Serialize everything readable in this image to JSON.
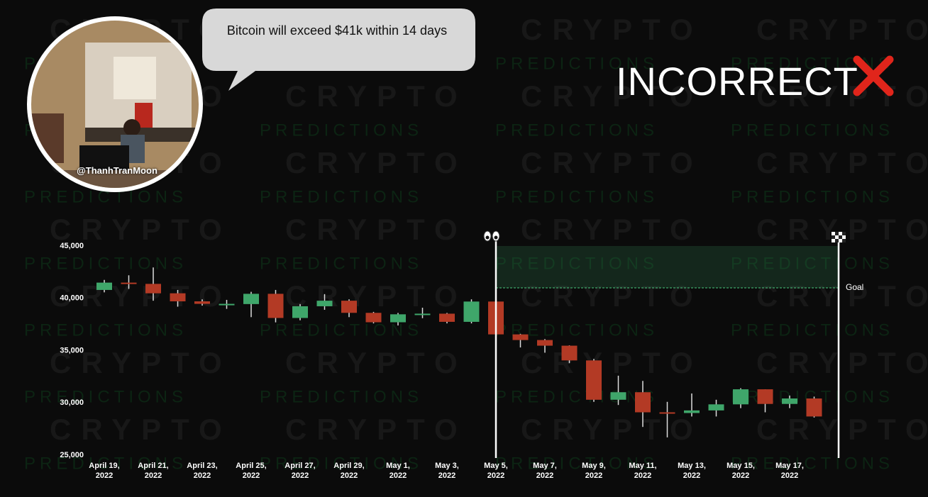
{
  "header": {
    "quote": "Bitcoin will exceed $41k within 14 days",
    "handle": "@ThanhTranMoon",
    "verdict": "INCORRECT"
  },
  "watermark": {
    "word": "CRYPTO",
    "subword": "PREDICTIONS"
  },
  "chart_data": {
    "type": "candlestick",
    "categories": [
      "April 19, 2022",
      null,
      "April 21, 2022",
      null,
      "April 23, 2022",
      null,
      "April 25, 2022",
      null,
      "April 27, 2022",
      null,
      "April 29, 2022",
      null,
      "May 1, 2022",
      null,
      "May 3, 2022",
      null,
      "May 5, 2022",
      null,
      "May 7, 2022",
      null,
      "May 9, 2022",
      null,
      "May 11, 2022",
      null,
      "May 13, 2022",
      null,
      "May 15, 2022",
      null,
      "May 17, 2022",
      null
    ],
    "open": [
      40800,
      41500,
      41380,
      40480,
      39710,
      39440,
      39450,
      40430,
      38120,
      39240,
      39770,
      38610,
      37710,
      38470,
      38530,
      37750,
      39690,
      36550,
      36010,
      35470,
      34060,
      30300,
      31020,
      29100,
      29030,
      29280,
      29860,
      31300,
      29900,
      30420
    ],
    "high": [
      41760,
      42200,
      42950,
      40800,
      39900,
      39850,
      40620,
      40800,
      39450,
      40400,
      39900,
      38700,
      38600,
      39100,
      38600,
      39900,
      39800,
      36600,
      36100,
      35500,
      34200,
      32600,
      32100,
      30100,
      30900,
      30300,
      31400,
      31300,
      30700,
      30600
    ],
    "low": [
      40570,
      40900,
      39770,
      39200,
      39300,
      38990,
      38200,
      37700,
      37900,
      38900,
      38200,
      37600,
      37400,
      38100,
      37600,
      37600,
      35600,
      35300,
      34800,
      33800,
      30100,
      29800,
      27700,
      26700,
      28700,
      28700,
      29500,
      29100,
      29500,
      28600
    ],
    "close": [
      41500,
      41380,
      40480,
      39710,
      39470,
      39470,
      40430,
      38120,
      39240,
      39770,
      38610,
      37710,
      38470,
      38530,
      37750,
      39690,
      36550,
      36010,
      35470,
      34060,
      30300,
      31020,
      29100,
      29030,
      29280,
      29860,
      31300,
      29900,
      30420,
      28700
    ],
    "up_color": "#3fa66a",
    "down_color": "#b33a25",
    "ylim": [
      25000,
      45000
    ],
    "yticks": [
      {
        "value": 25000,
        "label": "25,000"
      },
      {
        "value": 30000,
        "label": "30,000"
      },
      {
        "value": 35000,
        "label": "35,000"
      },
      {
        "value": 40000,
        "label": "40,000"
      },
      {
        "value": 45000,
        "label": "45,000"
      }
    ],
    "prediction": {
      "start": "May 5, 2022",
      "goal": 41000,
      "goal_label": "Goal",
      "color": "#3fa66a"
    }
  }
}
